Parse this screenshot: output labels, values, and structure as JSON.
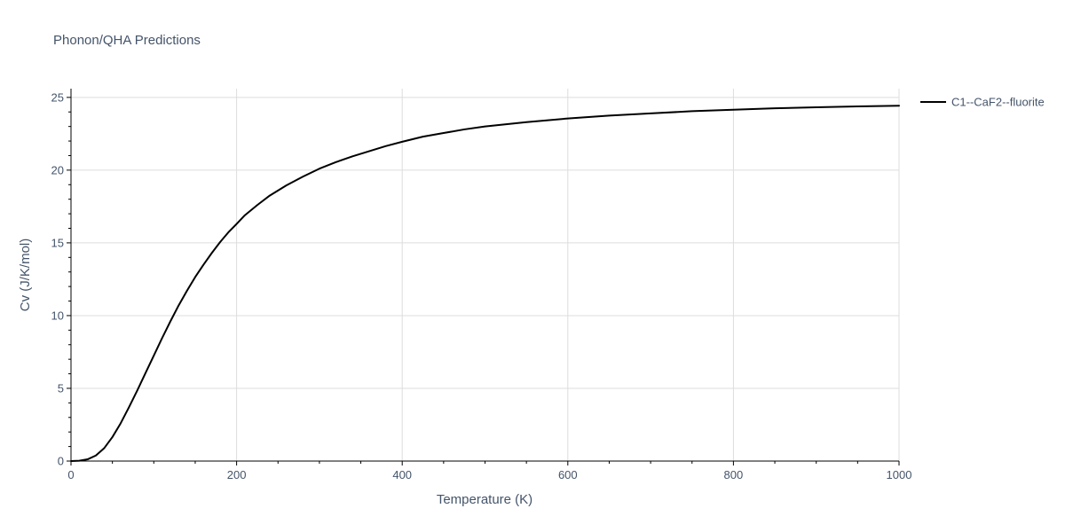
{
  "chart_data": {
    "type": "line",
    "title": "Phonon/QHA Predictions",
    "xlabel": "Temperature (K)",
    "ylabel": "Cv (J/K/mol)",
    "xlim": [
      0,
      1000
    ],
    "ylim": [
      0,
      25.6
    ],
    "x_ticks": [
      0,
      200,
      400,
      600,
      800,
      1000
    ],
    "y_ticks": [
      0,
      5,
      10,
      15,
      20,
      25
    ],
    "grid": true,
    "legend_position": "top-right",
    "series": [
      {
        "name": "C1--CaF2--fluorite",
        "color": "#000000",
        "x": [
          0,
          10,
          20,
          30,
          40,
          50,
          60,
          70,
          80,
          90,
          100,
          110,
          120,
          130,
          140,
          150,
          160,
          170,
          180,
          190,
          200,
          210,
          225,
          240,
          260,
          280,
          300,
          320,
          340,
          360,
          380,
          400,
          425,
          450,
          475,
          500,
          550,
          600,
          650,
          700,
          750,
          800,
          850,
          900,
          950,
          1000
        ],
        "y": [
          0,
          0.02,
          0.12,
          0.38,
          0.88,
          1.65,
          2.6,
          3.7,
          4.85,
          6.05,
          7.25,
          8.45,
          9.6,
          10.7,
          11.7,
          12.65,
          13.5,
          14.3,
          15.05,
          15.72,
          16.3,
          16.9,
          17.6,
          18.25,
          18.95,
          19.55,
          20.1,
          20.55,
          20.95,
          21.3,
          21.65,
          21.95,
          22.3,
          22.55,
          22.8,
          23.0,
          23.3,
          23.55,
          23.75,
          23.9,
          24.05,
          24.15,
          24.25,
          24.32,
          24.38,
          24.43
        ]
      }
    ]
  }
}
